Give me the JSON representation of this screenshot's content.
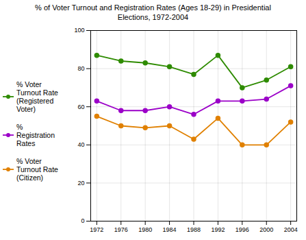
{
  "chart_data": {
    "type": "line",
    "title": "% of Voter Turnout and Registration Rates (Ages 18-29) in Presidential\nElections, 1972-2004",
    "x": [
      1972,
      1976,
      1980,
      1984,
      1988,
      1992,
      1996,
      2000,
      2004
    ],
    "series": [
      {
        "name": "% Voter\nTurnout Rate\n(Registered\nVoter)",
        "color": "#2e8b00",
        "marker": "circle",
        "values": [
          87,
          84,
          83,
          81,
          77,
          87,
          70,
          74,
          81
        ]
      },
      {
        "name": "%\nRegistration\nRates",
        "color": "#9b00c8",
        "marker": "circle",
        "values": [
          63,
          58,
          58,
          60,
          56,
          63,
          63,
          64,
          71
        ]
      },
      {
        "name": "% Voter\nTurnout Rate\n(Citizen)",
        "color": "#e08000",
        "marker": "circle",
        "values": [
          55,
          50,
          49,
          50,
          43,
          54,
          40,
          40,
          52
        ]
      }
    ],
    "xlim": [
      1971,
      2005
    ],
    "xticks": [
      1972,
      1976,
      1980,
      1984,
      1988,
      1992,
      1996,
      2000,
      2004
    ],
    "ylim": [
      0,
      100
    ],
    "yticks": [
      0,
      20,
      40,
      60,
      80,
      100
    ],
    "grid": true,
    "legend": "left"
  }
}
